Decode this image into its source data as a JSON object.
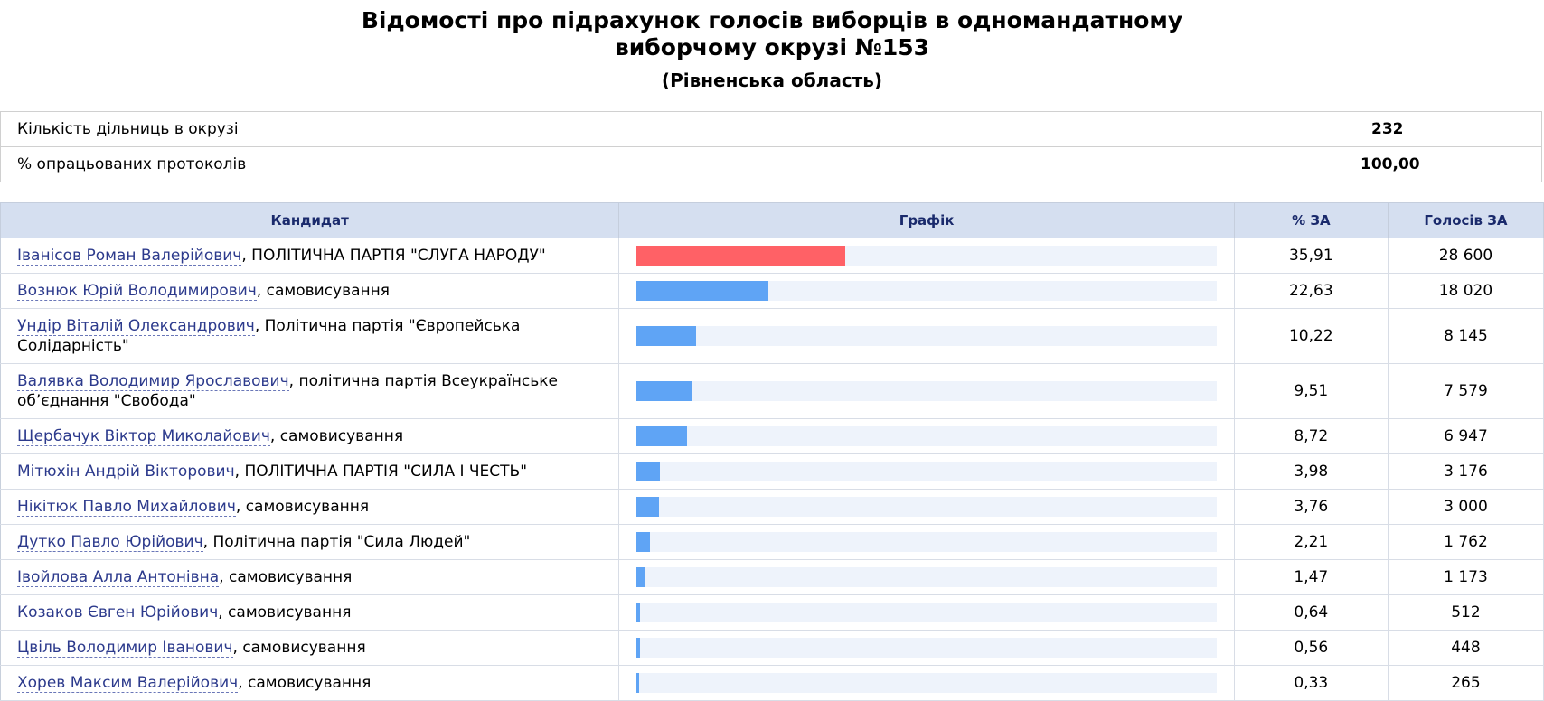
{
  "header": {
    "title_line1": "Відомості про підрахунок голосів виборців в одномандатному",
    "title_line2": "виборчому окрузі №153",
    "subtitle": "(Рівненська область)"
  },
  "info": [
    {
      "label": "Кількість дільниць в окрузі",
      "value": "232"
    },
    {
      "label": "% опрацьованих протоколів",
      "value": "100,00"
    }
  ],
  "table": {
    "columns": [
      "Кандидат",
      "Графік",
      "% ЗА",
      "Голосів ЗА"
    ],
    "rows": [
      {
        "name": "Іванісов Роман Валерійович",
        "party": ", ПОЛІТИЧНА ПАРТІЯ \"СЛУГА НАРОДУ\"",
        "percent": "35,91",
        "votes": "28 600",
        "share": 35.91,
        "color": "#ff6166"
      },
      {
        "name": "Вознюк Юрій Володимирович",
        "party": ", самовисування",
        "percent": "22,63",
        "votes": "18 020",
        "share": 22.63,
        "color": "#5fa4f5"
      },
      {
        "name": "Ундір Віталій Олександрович",
        "party": ", Політична партія \"Європейська Солідарність\"",
        "percent": "10,22",
        "votes": "8 145",
        "share": 10.22,
        "color": "#5fa4f5"
      },
      {
        "name": "Валявка Володимир Ярославович",
        "party": ", політична партія Всеукраїнське об’єднання \"Свобода\"",
        "percent": "9,51",
        "votes": "7 579",
        "share": 9.51,
        "color": "#5fa4f5"
      },
      {
        "name": "Щербачук Віктор Миколайович",
        "party": ", самовисування",
        "percent": "8,72",
        "votes": "6 947",
        "share": 8.72,
        "color": "#5fa4f5"
      },
      {
        "name": "Мітюхін Андрій Вікторович",
        "party": ", ПОЛІТИЧНА ПАРТІЯ \"СИЛА І ЧЕСТЬ\"",
        "percent": "3,98",
        "votes": "3 176",
        "share": 3.98,
        "color": "#5fa4f5"
      },
      {
        "name": "Нікітюк Павло Михайлович",
        "party": ", самовисування",
        "percent": "3,76",
        "votes": "3 000",
        "share": 3.76,
        "color": "#5fa4f5"
      },
      {
        "name": "Дутко Павло Юрійович",
        "party": ", Політична партія \"Сила Людей\"",
        "percent": "2,21",
        "votes": "1 762",
        "share": 2.21,
        "color": "#5fa4f5"
      },
      {
        "name": "Івойлова Алла Антонівна",
        "party": ", самовисування",
        "percent": "1,47",
        "votes": "1 173",
        "share": 1.47,
        "color": "#5fa4f5"
      },
      {
        "name": "Козаков Євген Юрійович",
        "party": ", самовисування",
        "percent": "0,64",
        "votes": "512",
        "share": 0.64,
        "color": "#5fa4f5"
      },
      {
        "name": "Цвіль Володимир Іванович",
        "party": ", самовисування",
        "percent": "0,56",
        "votes": "448",
        "share": 0.56,
        "color": "#5fa4f5"
      },
      {
        "name": "Хорев Максим Валерійович",
        "party": ", самовисування",
        "percent": "0,33",
        "votes": "265",
        "share": 0.33,
        "color": "#5fa4f5"
      }
    ]
  }
}
